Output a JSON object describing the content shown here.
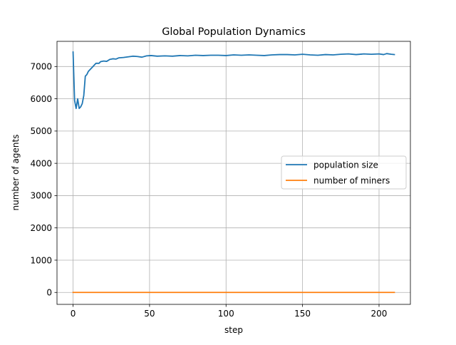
{
  "chart_data": {
    "type": "line",
    "title": "Global Population Dynamics",
    "xlabel": "step",
    "ylabel": "number of agents",
    "xlim": [
      -10.5,
      220.5
    ],
    "ylim": [
      -370,
      7780
    ],
    "x_ticks": [
      0,
      50,
      100,
      150,
      200
    ],
    "y_ticks": [
      0,
      1000,
      2000,
      3000,
      4000,
      5000,
      6000,
      7000
    ],
    "grid": true,
    "legend": "center-right",
    "series": [
      {
        "name": "population size",
        "color": "#1f77b4",
        "points": [
          [
            0,
            7450
          ],
          [
            1,
            5950
          ],
          [
            2,
            5700
          ],
          [
            3,
            6000
          ],
          [
            4,
            5700
          ],
          [
            5,
            5750
          ],
          [
            6,
            5850
          ],
          [
            7,
            6100
          ],
          [
            8,
            6700
          ],
          [
            9,
            6750
          ],
          [
            10,
            6850
          ],
          [
            11,
            6900
          ],
          [
            12,
            6950
          ],
          [
            13,
            7000
          ],
          [
            14,
            7050
          ],
          [
            15,
            7100
          ],
          [
            17,
            7100
          ],
          [
            18,
            7150
          ],
          [
            20,
            7170
          ],
          [
            22,
            7160
          ],
          [
            24,
            7220
          ],
          [
            26,
            7240
          ],
          [
            28,
            7230
          ],
          [
            30,
            7270
          ],
          [
            33,
            7280
          ],
          [
            36,
            7300
          ],
          [
            39,
            7320
          ],
          [
            42,
            7310
          ],
          [
            45,
            7290
          ],
          [
            48,
            7330
          ],
          [
            51,
            7340
          ],
          [
            55,
            7320
          ],
          [
            60,
            7330
          ],
          [
            65,
            7320
          ],
          [
            70,
            7340
          ],
          [
            75,
            7330
          ],
          [
            80,
            7350
          ],
          [
            85,
            7340
          ],
          [
            90,
            7350
          ],
          [
            95,
            7350
          ],
          [
            100,
            7340
          ],
          [
            105,
            7360
          ],
          [
            110,
            7350
          ],
          [
            115,
            7360
          ],
          [
            120,
            7350
          ],
          [
            125,
            7340
          ],
          [
            130,
            7360
          ],
          [
            135,
            7370
          ],
          [
            140,
            7370
          ],
          [
            145,
            7360
          ],
          [
            150,
            7380
          ],
          [
            155,
            7360
          ],
          [
            160,
            7350
          ],
          [
            165,
            7370
          ],
          [
            170,
            7360
          ],
          [
            175,
            7380
          ],
          [
            180,
            7390
          ],
          [
            185,
            7370
          ],
          [
            190,
            7390
          ],
          [
            195,
            7380
          ],
          [
            200,
            7390
          ],
          [
            203,
            7370
          ],
          [
            205,
            7400
          ],
          [
            208,
            7380
          ],
          [
            210,
            7370
          ]
        ]
      },
      {
        "name": "number of miners",
        "color": "#ff7f0e",
        "points": [
          [
            0,
            0
          ],
          [
            210,
            0
          ]
        ]
      }
    ]
  }
}
